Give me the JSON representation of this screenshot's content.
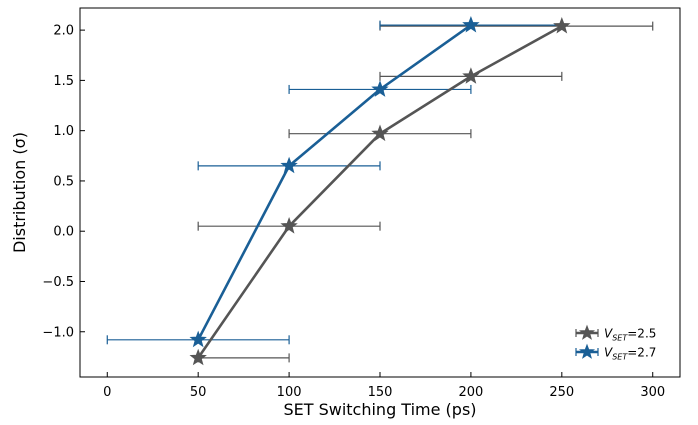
{
  "chart_data": {
    "type": "line",
    "xlabel": "SET Switching Time (ps)",
    "ylabel": "Distribution (σ)",
    "xlim": [
      -15,
      315
    ],
    "ylim": [
      -1.45,
      2.22
    ],
    "xticks": [
      0,
      50,
      100,
      150,
      200,
      250,
      300
    ],
    "yticks": [
      -1.0,
      -0.5,
      0.0,
      0.5,
      1.0,
      1.5,
      2.0
    ],
    "xtick_labels": [
      "0",
      "50",
      "100",
      "150",
      "200",
      "250",
      "300"
    ],
    "ytick_labels": [
      "−1.0",
      "−0.5",
      "0.0",
      "0.5",
      "1.0",
      "1.5",
      "2.0"
    ],
    "legend_position": "bottom-right",
    "grid": false,
    "series": [
      {
        "name": "V_SET=2.5",
        "legend_main": "V",
        "legend_sub": "SET",
        "legend_suffix": "=2.5",
        "color": "#555555",
        "marker": "star",
        "points": [
          {
            "x": 50,
            "y": -1.26,
            "xerr": [
              50,
              100
            ]
          },
          {
            "x": 100,
            "y": 0.05,
            "xerr": [
              50,
              150
            ]
          },
          {
            "x": 150,
            "y": 0.97,
            "xerr": [
              100,
              200
            ]
          },
          {
            "x": 200,
            "y": 1.54,
            "xerr": [
              150,
              250
            ]
          },
          {
            "x": 250,
            "y": 2.04,
            "xerr": [
              150,
              300
            ]
          }
        ]
      },
      {
        "name": "V_SET=2.7",
        "legend_main": "V",
        "legend_sub": "SET",
        "legend_suffix": "=2.7",
        "color": "#1a5f96",
        "marker": "star",
        "points": [
          {
            "x": 50,
            "y": -1.08,
            "xerr": [
              0,
              100
            ]
          },
          {
            "x": 100,
            "y": 0.65,
            "xerr": [
              50,
              150
            ]
          },
          {
            "x": 150,
            "y": 1.41,
            "xerr": [
              100,
              200
            ]
          },
          {
            "x": 200,
            "y": 2.05,
            "xerr": [
              150,
              250
            ]
          }
        ]
      }
    ]
  }
}
